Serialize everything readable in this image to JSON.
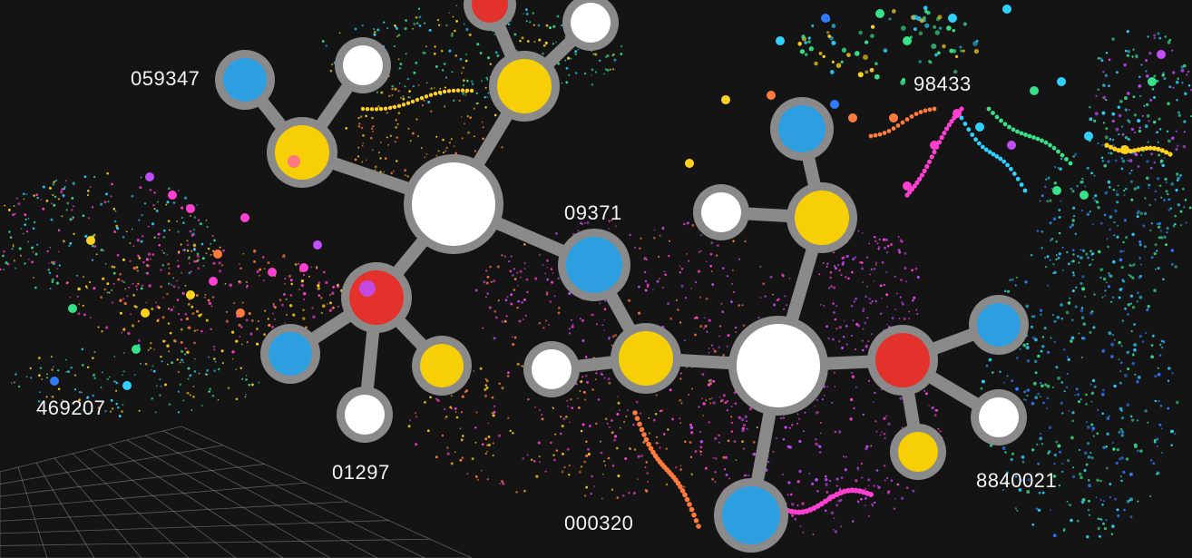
{
  "scene": {
    "background": "#141414",
    "palette": {
      "bond": "#8a8a8a",
      "atom_white": "#ffffff",
      "atom_yellow": "#f7cf06",
      "atom_blue": "#2d9ee0",
      "atom_red": "#e2322b",
      "particles": [
        "#ff3fd2",
        "#ff7a3d",
        "#ffd21f",
        "#38e28a",
        "#2fd1ff",
        "#2f7bff",
        "#c14dff"
      ]
    }
  },
  "labels": {
    "l1": "059347",
    "l2": "09371",
    "l3": "98433",
    "l4": "469207",
    "l5": "01297",
    "l6": "000320",
    "l7": "8840021"
  }
}
